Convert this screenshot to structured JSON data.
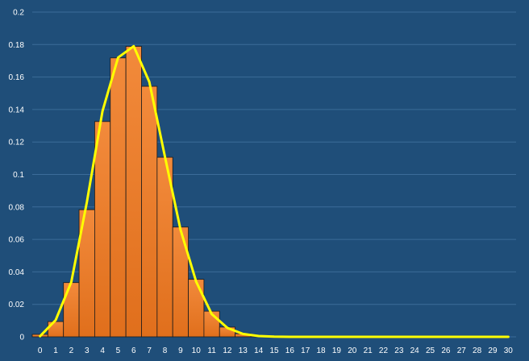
{
  "chart_data": {
    "type": "bar",
    "categories": [
      "0",
      "1",
      "2",
      "3",
      "4",
      "5",
      "6",
      "7",
      "8",
      "9",
      "10",
      "11",
      "12",
      "13",
      "14",
      "15",
      "16",
      "17",
      "18",
      "19",
      "20",
      "21",
      "22",
      "23",
      "24",
      "25",
      "26",
      "27",
      "28",
      "29",
      "30"
    ],
    "series": [
      {
        "type": "bar",
        "values": [
          0.0015,
          0.0094,
          0.0334,
          0.0783,
          0.1326,
          0.1718,
          0.1789,
          0.1543,
          0.1106,
          0.0676,
          0.0354,
          0.0158,
          0.006,
          0.0019,
          0.0005,
          0.0001,
          0,
          0,
          0,
          0,
          0,
          0,
          0,
          0,
          0,
          0,
          0,
          0,
          0,
          0,
          0
        ]
      },
      {
        "type": "line",
        "values": [
          0.0004,
          0.0103,
          0.0337,
          0.083,
          0.139,
          0.172,
          0.179,
          0.157,
          0.111,
          0.066,
          0.034,
          0.014,
          0.0055,
          0.0018,
          0.0005,
          0.0001,
          0,
          0,
          0,
          0,
          0,
          0,
          0,
          0,
          0,
          0,
          0,
          0,
          0,
          0,
          0
        ]
      }
    ],
    "ylim": [
      0,
      0.2
    ],
    "yticks": [
      "0",
      "0.02",
      "0.04",
      "0.06",
      "0.08",
      "0.1",
      "0.12",
      "0.14",
      "0.16",
      "0.18",
      "0.2"
    ],
    "ytick_values": [
      0,
      0.02,
      0.04,
      0.06,
      0.08,
      0.1,
      0.12,
      0.14,
      0.16,
      0.18,
      0.2
    ],
    "grid": true,
    "title": "",
    "xlabel": "",
    "ylabel": ""
  },
  "colors": {
    "background": "#1f4e79",
    "grid": "#3b6c99",
    "bar_top": "#f28a3b",
    "bar_bottom": "#e06f1c",
    "line": "#ffff00",
    "text": "#ffffff"
  }
}
